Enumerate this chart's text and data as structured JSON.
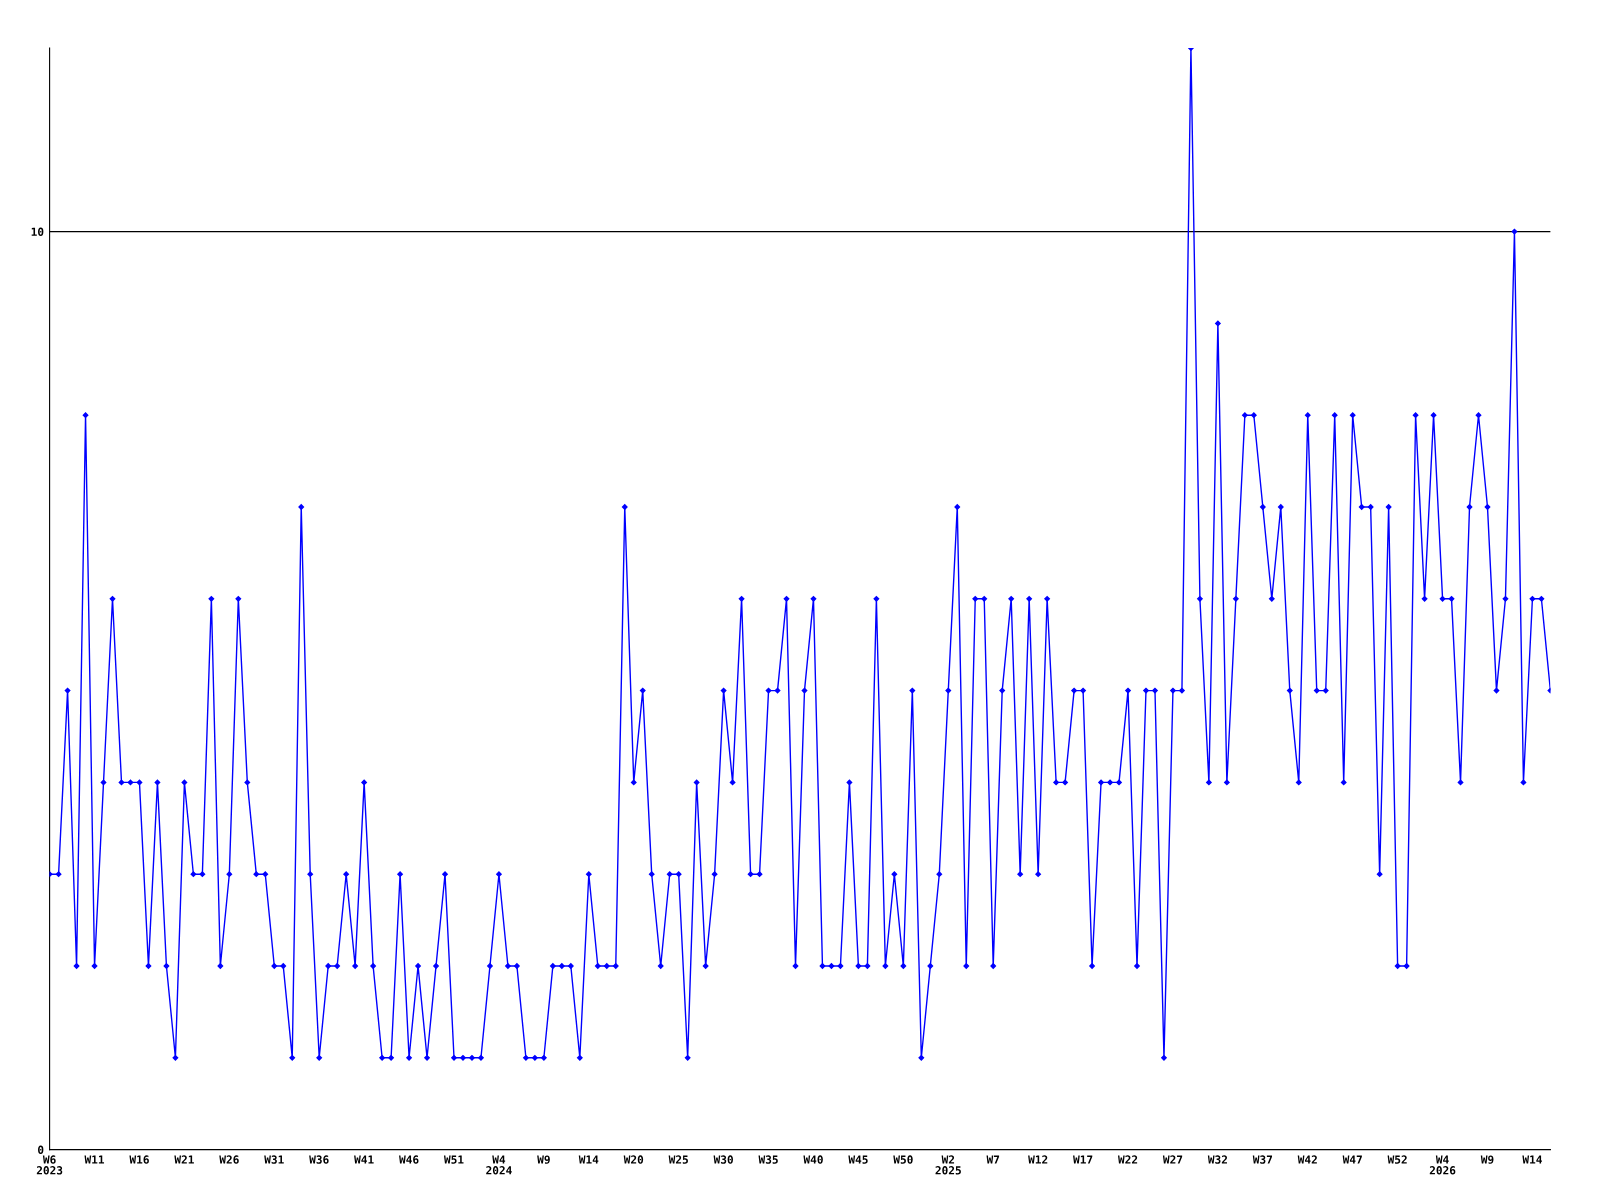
{
  "chart_data": {
    "type": "line",
    "categories": [
      "W6\n2023",
      null,
      null,
      null,
      null,
      "W11",
      null,
      null,
      null,
      null,
      "W16",
      null,
      null,
      null,
      null,
      "W21",
      null,
      null,
      null,
      null,
      "W26",
      null,
      null,
      null,
      null,
      "W31",
      null,
      null,
      null,
      null,
      "W36",
      null,
      null,
      null,
      null,
      "W41",
      null,
      null,
      null,
      null,
      "W46",
      null,
      null,
      null,
      null,
      "W51",
      null,
      null,
      null,
      null,
      "W4\n2024",
      null,
      null,
      null,
      null,
      "W9",
      null,
      null,
      null,
      null,
      "W14",
      null,
      null,
      null,
      null,
      "W20",
      null,
      null,
      null,
      null,
      "W25",
      null,
      null,
      null,
      null,
      "W30",
      null,
      null,
      null,
      null,
      "W35",
      null,
      null,
      null,
      null,
      "W40",
      null,
      null,
      null,
      null,
      "W45",
      null,
      null,
      null,
      null,
      "W50",
      null,
      null,
      null,
      null,
      "W2\n2025",
      null,
      null,
      null,
      null,
      "W7",
      null,
      null,
      null,
      null,
      "W12",
      null,
      null,
      null,
      null,
      "W17",
      null,
      null,
      null,
      null,
      "W22",
      null,
      null,
      null,
      null,
      "W27",
      null,
      null,
      null,
      null,
      "W32",
      null,
      null,
      null,
      null,
      "W37",
      null,
      null,
      null,
      null,
      "W42",
      null,
      null,
      null,
      null,
      "W47",
      null,
      null,
      null,
      null,
      "W52",
      null,
      null,
      null,
      null,
      "W4\n2026",
      null,
      null,
      null,
      null,
      "W9",
      null,
      null,
      null,
      null,
      "W14",
      null,
      null
    ],
    "series": [
      {
        "color": "#0000ff",
        "values": [
          3,
          3,
          5,
          2,
          8,
          2,
          4,
          6,
          4,
          4,
          4,
          2,
          4,
          2,
          1,
          4,
          3,
          3,
          6,
          2,
          3,
          6,
          4,
          3,
          3,
          2,
          2,
          1,
          7,
          3,
          1,
          2,
          2,
          3,
          2,
          4,
          2,
          1,
          1,
          3,
          1,
          2,
          1,
          2,
          3,
          1,
          1,
          1,
          1,
          2,
          3,
          2,
          2,
          1,
          1,
          1,
          2,
          2,
          2,
          1,
          3,
          2,
          2,
          2,
          7,
          4,
          5,
          3,
          2,
          3,
          3,
          1,
          4,
          2,
          3,
          5,
          4,
          6,
          3,
          3,
          5,
          5,
          6,
          2,
          5,
          6,
          2,
          2,
          2,
          4,
          2,
          2,
          6,
          2,
          3,
          2,
          5,
          1,
          2,
          3,
          5,
          7,
          2,
          6,
          6,
          2,
          5,
          6,
          3,
          6,
          3,
          6,
          4,
          4,
          5,
          5,
          2,
          4,
          4,
          4,
          5,
          2,
          5,
          5,
          1,
          5,
          5,
          12,
          6,
          4,
          9,
          4,
          6,
          8,
          8,
          7,
          6,
          7,
          5,
          4,
          8,
          5,
          5,
          8,
          4,
          8,
          7,
          7,
          3,
          7,
          2,
          2,
          8,
          6,
          8,
          6,
          6,
          4,
          7,
          8,
          7,
          5,
          6,
          10,
          4,
          6,
          6,
          5
        ]
      }
    ],
    "ylim": [
      0,
      12
    ],
    "yticks": [
      0,
      10
    ],
    "grid": "y",
    "marker": "diamond",
    "line_style": "solid"
  }
}
